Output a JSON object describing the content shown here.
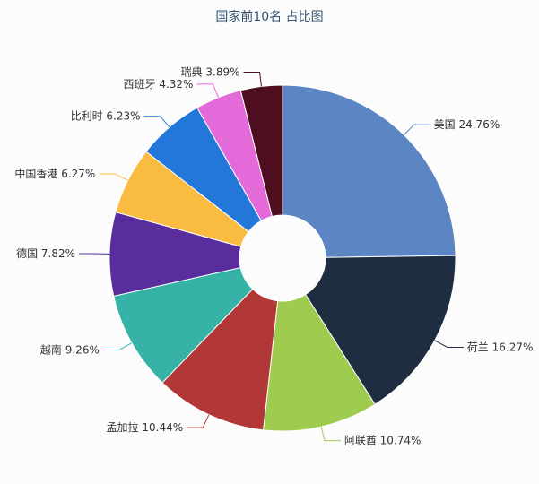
{
  "page": {
    "background_color": "#fcfcfc"
  },
  "chart_data": {
    "type": "pie",
    "donut": true,
    "title": "国家前10名 占比图",
    "title_color": "#35536f",
    "label_color": "#333333",
    "unit": "%",
    "start_angle_deg": 0,
    "direction": "clockwise",
    "legend": "none",
    "categories": [
      "美国",
      "荷兰",
      "阿联酋",
      "孟加拉",
      "越南",
      "德国",
      "中国香港",
      "比利时",
      "西班牙",
      "瑞典"
    ],
    "values": [
      24.76,
      16.27,
      10.74,
      10.44,
      9.26,
      7.82,
      6.27,
      6.23,
      4.32,
      3.89
    ],
    "labels": [
      "美国 24.76%",
      "荷兰 16.27%",
      "阿联酋 10.74%",
      "孟加拉 10.44%",
      "越南 9.26%",
      "德国 7.82%",
      "中国香港 6.27%",
      "比利时 6.23%",
      "西班牙 4.32%",
      "瑞典 3.89%"
    ],
    "colors": [
      "#5b86c3",
      "#1f2d40",
      "#9fcb4e",
      "#b23737",
      "#36b3a6",
      "#5a2d9c",
      "#f9bc41",
      "#2277d8",
      "#e46ad9",
      "#4f0e20"
    ]
  }
}
